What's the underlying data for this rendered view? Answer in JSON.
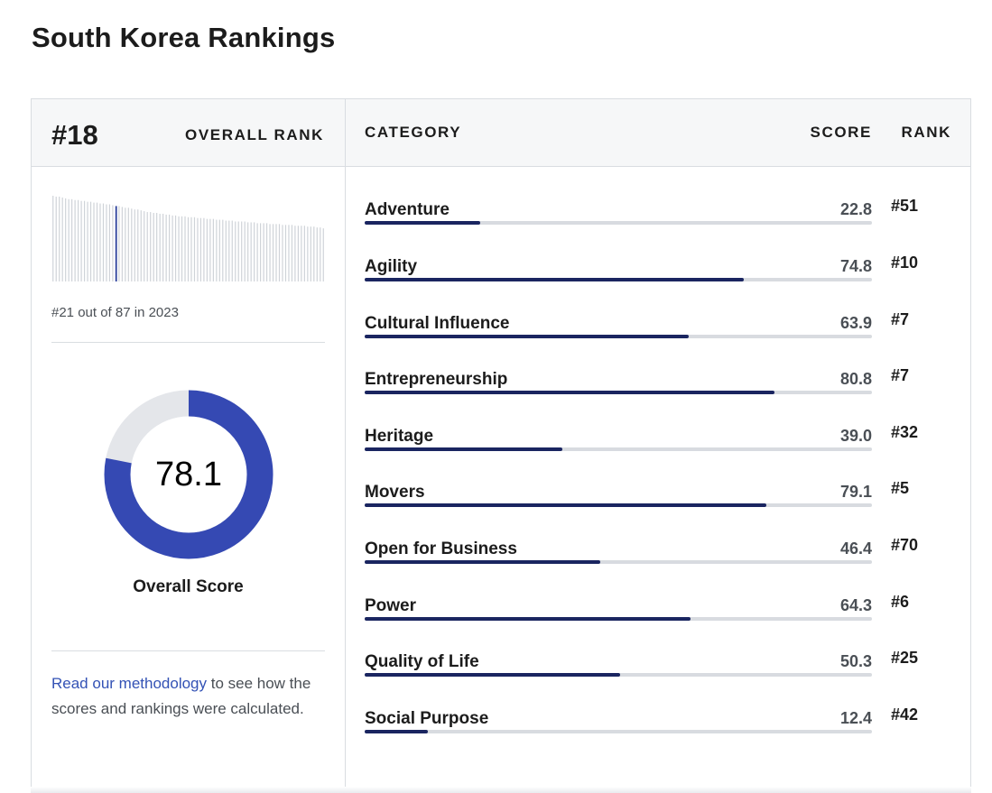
{
  "page": {
    "title": "South Korea Rankings"
  },
  "overall": {
    "rank": "#18",
    "rank_label": "OVERALL RANK",
    "history_text": "#21 out of 87 in 2023",
    "score": "78.1",
    "score_value": 78.1,
    "score_label": "Overall Score",
    "accent_color": "#3549b3",
    "remainder_color": "#e4e6ea"
  },
  "table": {
    "headers": {
      "category": "CATEGORY",
      "score": "SCORE",
      "rank": "RANK"
    },
    "bar_color": "#1a2560",
    "track_color": "#d8dbe0",
    "rows": [
      {
        "name": "Adventure",
        "score": "22.8",
        "value": 22.8,
        "rank": "#51"
      },
      {
        "name": "Agility",
        "score": "74.8",
        "value": 74.8,
        "rank": "#10"
      },
      {
        "name": "Cultural Influence",
        "score": "63.9",
        "value": 63.9,
        "rank": "#7"
      },
      {
        "name": "Entrepreneurship",
        "score": "80.8",
        "value": 80.8,
        "rank": "#7"
      },
      {
        "name": "Heritage",
        "score": "39.0",
        "value": 39.0,
        "rank": "#32"
      },
      {
        "name": "Movers",
        "score": "79.1",
        "value": 79.1,
        "rank": "#5"
      },
      {
        "name": "Open for Business",
        "score": "46.4",
        "value": 46.4,
        "rank": "#70"
      },
      {
        "name": "Power",
        "score": "64.3",
        "value": 64.3,
        "rank": "#6"
      },
      {
        "name": "Quality of Life",
        "score": "50.3",
        "value": 50.3,
        "rank": "#25"
      },
      {
        "name": "Social Purpose",
        "score": "12.4",
        "value": 12.4,
        "rank": "#42"
      }
    ]
  },
  "methodology": {
    "link_text": "Read our methodology",
    "rest_text": " to see how the scores and rankings were calculated."
  },
  "chart_data": {
    "type": "bar",
    "total_countries": 87,
    "highlight_position": 21,
    "values": [
      100,
      99,
      99,
      98,
      97,
      96,
      96,
      95,
      95,
      94,
      94,
      93,
      93,
      92,
      92,
      91,
      91,
      90,
      90,
      89,
      88,
      88,
      87,
      86,
      86,
      85,
      84,
      84,
      83,
      82,
      81,
      81,
      80,
      80,
      79,
      79,
      78,
      78,
      77,
      77,
      76,
      76,
      76,
      75,
      75,
      75,
      74,
      74,
      74,
      73,
      73,
      73,
      72,
      72,
      72,
      71,
      71,
      71,
      70,
      70,
      70,
      70,
      69,
      69,
      69,
      68,
      68,
      68,
      68,
      67,
      67,
      67,
      67,
      66,
      66,
      66,
      66,
      65,
      65,
      65,
      65,
      64,
      64,
      64,
      63,
      63,
      62
    ],
    "bar_color": "#cfd3d8",
    "highlight_color": "#2b3f9b"
  }
}
